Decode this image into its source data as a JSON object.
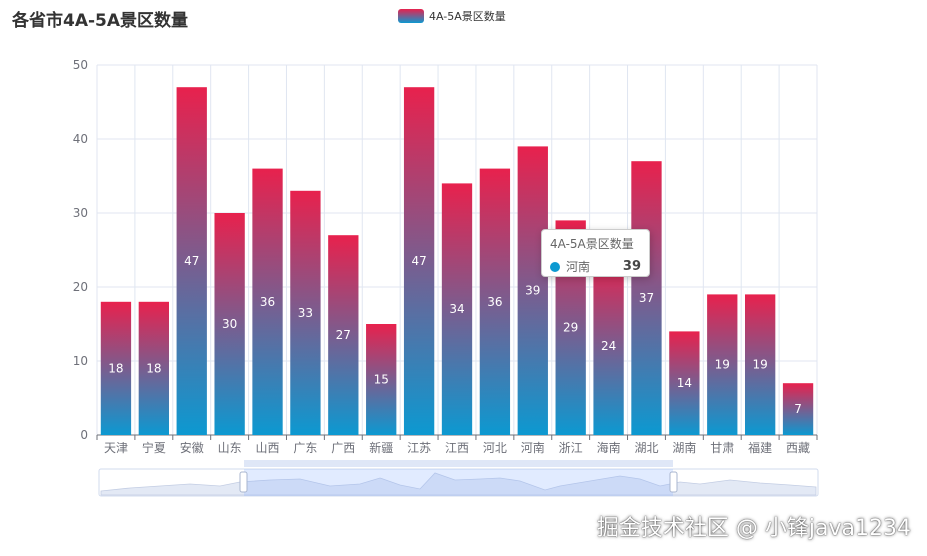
{
  "chart_data": {
    "type": "bar",
    "title": "各省市4A-5A景区数量",
    "series": [
      {
        "name": "4A-5A景区数量",
        "values": [
          18,
          18,
          47,
          30,
          36,
          33,
          27,
          15,
          47,
          34,
          36,
          39,
          29,
          24,
          37,
          14,
          19,
          19,
          7
        ]
      }
    ],
    "categories": [
      "天津",
      "宁夏",
      "安徽",
      "山东",
      "山西",
      "广东",
      "广西",
      "新疆",
      "江苏",
      "江西",
      "河北",
      "河南",
      "浙江",
      "海南",
      "湖北",
      "湖南",
      "甘肃",
      "福建",
      "西藏"
    ],
    "yticks": [
      "0",
      "10",
      "20",
      "30",
      "40",
      "50"
    ],
    "ylim": [
      0,
      50
    ],
    "grid": true,
    "legend_position": "top-center",
    "colors": {
      "gradient_top": "#e8214d",
      "gradient_bottom": "#0c99d1"
    },
    "tooltip": {
      "title": "4A-5A景区数量",
      "label": "河南",
      "value": "39"
    }
  },
  "watermark": "掘金技术社区 @ 小锋java1234"
}
